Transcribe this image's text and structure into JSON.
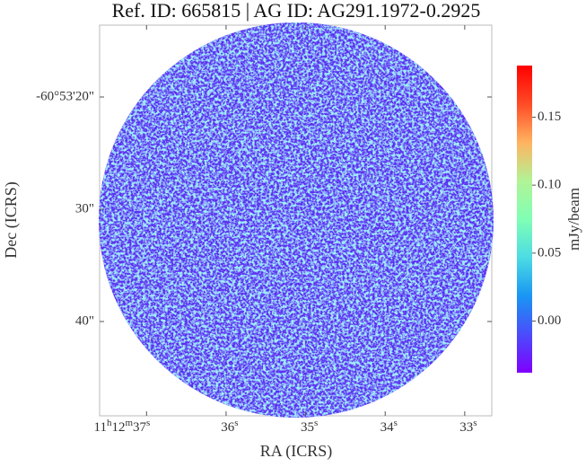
{
  "chart_data": {
    "type": "image",
    "title": "Ref. ID: 665815 | AG ID: AG291.1972-0.2925",
    "xlabel": "RA (ICRS)",
    "ylabel": "Dec (ICRS)",
    "xlim": [
      37.59,
      32.66
    ],
    "xticks": [
      {
        "value": 37,
        "label": "11h12m37s"
      },
      {
        "value": 36,
        "label": "36s"
      },
      {
        "value": 35,
        "label": "35s"
      },
      {
        "value": 34,
        "label": "34s"
      },
      {
        "value": 33,
        "label": "33s"
      }
    ],
    "ylim": [
      48.4,
      13.6
    ],
    "yticks": [
      {
        "value": 20,
        "label": "-60°53'20\""
      },
      {
        "value": 30,
        "label": "30\""
      },
      {
        "value": 40,
        "label": "40\""
      }
    ],
    "colormap": "rainbow",
    "colorbar": {
      "label": "mJy/beam",
      "lim": [
        -0.038,
        0.188
      ],
      "ticks": [
        {
          "value": 0,
          "label": "0.00"
        },
        {
          "value": 0.05,
          "label": "0.05"
        },
        {
          "value": 0.1,
          "label": "0.10"
        },
        {
          "value": 0.15,
          "label": "0.15"
        }
      ]
    }
  }
}
